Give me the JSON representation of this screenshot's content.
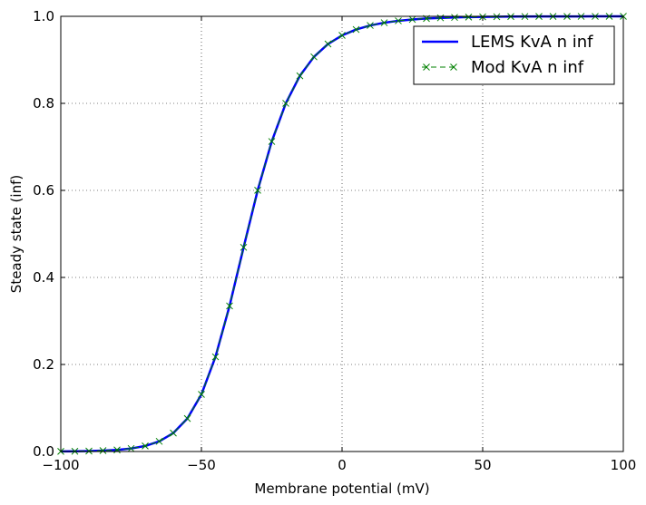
{
  "chart_data": {
    "type": "line",
    "xlabel": "Membrane potential (mV)",
    "ylabel": "Steady state (inf)",
    "xlim": [
      -100,
      100
    ],
    "ylim": [
      0.0,
      1.0
    ],
    "xticks": [
      -100,
      -50,
      0,
      50,
      100
    ],
    "yticks": [
      0.0,
      0.2,
      0.4,
      0.6,
      0.8,
      1.0
    ],
    "xtick_labels": [
      "−100",
      "−50",
      "0",
      "50",
      "100"
    ],
    "ytick_labels": [
      "0.0",
      "0.2",
      "0.4",
      "0.6",
      "0.8",
      "1.0"
    ],
    "grid": true,
    "legend_position": "top-right",
    "series": [
      {
        "name": "LEMS KvA n inf",
        "color": "#0000ff",
        "style": "solid",
        "x": [
          -100,
          -95,
          -90,
          -85,
          -80,
          -75,
          -70,
          -65,
          -60,
          -55,
          -50,
          -45,
          -40,
          -35,
          -30,
          -25,
          -20,
          -15,
          -10,
          -5,
          0,
          5,
          10,
          15,
          20,
          25,
          30,
          40,
          50,
          60,
          70,
          80,
          90,
          100
        ],
        "y": [
          0.0003,
          0.0006,
          0.0011,
          0.002,
          0.0037,
          0.0069,
          0.0127,
          0.0233,
          0.0424,
          0.0757,
          0.1312,
          0.2176,
          0.3345,
          0.4691,
          0.6002,
          0.7124,
          0.8001,
          0.8633,
          0.9069,
          0.9364,
          0.9562,
          0.9697,
          0.979,
          0.9853,
          0.9897,
          0.9928,
          0.995,
          0.9975,
          0.9988,
          0.9994,
          0.9997,
          0.9998,
          0.9999,
          1.0
        ]
      },
      {
        "name": "Mod KvA n inf",
        "color": "#008000",
        "style": "dashed-x",
        "x": [
          -100,
          -95,
          -90,
          -85,
          -80,
          -75,
          -70,
          -65,
          -60,
          -55,
          -50,
          -45,
          -40,
          -35,
          -30,
          -25,
          -20,
          -15,
          -10,
          -5,
          0,
          5,
          10,
          15,
          20,
          25,
          30,
          35,
          40,
          45,
          50,
          55,
          60,
          65,
          70,
          75,
          80,
          85,
          90,
          95,
          100
        ],
        "y": [
          0.0003,
          0.0006,
          0.0011,
          0.002,
          0.0037,
          0.0069,
          0.0127,
          0.0233,
          0.0424,
          0.0757,
          0.1312,
          0.2176,
          0.3345,
          0.4691,
          0.6002,
          0.7124,
          0.8001,
          0.8633,
          0.9069,
          0.9364,
          0.9562,
          0.9697,
          0.979,
          0.9853,
          0.9897,
          0.9928,
          0.995,
          0.9965,
          0.9975,
          0.9982,
          0.9988,
          0.9991,
          0.9994,
          0.9996,
          0.9997,
          0.9998,
          0.9998,
          0.9999,
          0.9999,
          1.0,
          1.0
        ]
      }
    ]
  }
}
